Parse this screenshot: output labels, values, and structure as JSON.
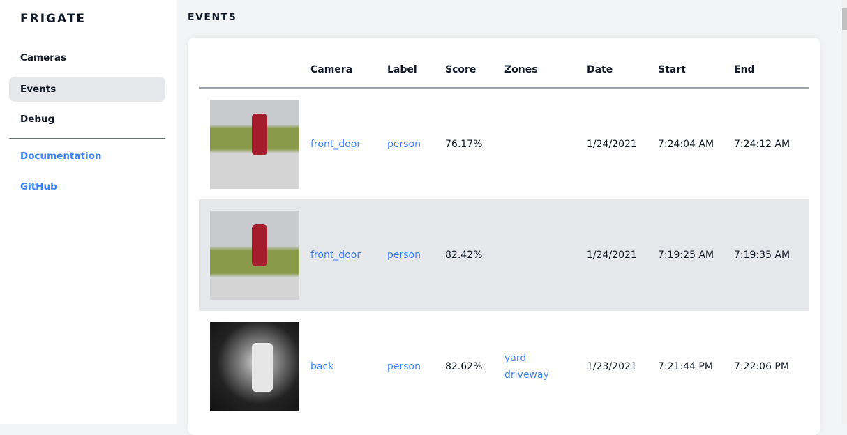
{
  "sidebar": {
    "brand": "FRIGATE",
    "items": [
      {
        "label": "Cameras"
      },
      {
        "label": "Events",
        "active": true
      },
      {
        "label": "Debug"
      }
    ],
    "links": [
      {
        "label": "Documentation"
      },
      {
        "label": "GitHub"
      }
    ]
  },
  "header": {
    "title": "EVENTS"
  },
  "table": {
    "columns": [
      "",
      "Camera",
      "Label",
      "Score",
      "Zones",
      "Date",
      "Start",
      "End"
    ],
    "rows": [
      {
        "camera": "front_door",
        "label": "person",
        "score": "76.17%",
        "zones": [
          "",
          ""
        ],
        "date": "1/24/2021",
        "start": "7:24:04 AM",
        "end": "7:24:12 AM"
      },
      {
        "camera": "front_door",
        "label": "person",
        "score": "82.42%",
        "zones": [
          "",
          ""
        ],
        "date": "1/24/2021",
        "start": "7:19:25 AM",
        "end": "7:19:35 AM"
      },
      {
        "camera": "back",
        "label": "person",
        "score": "82.62%",
        "zones": [
          "yard",
          "driveway"
        ],
        "date": "1/23/2021",
        "start": "7:21:44 PM",
        "end": "7:22:06 PM"
      }
    ]
  },
  "colors": {
    "accent": "#3b82f6",
    "active_bg": "#e5e7eb"
  }
}
